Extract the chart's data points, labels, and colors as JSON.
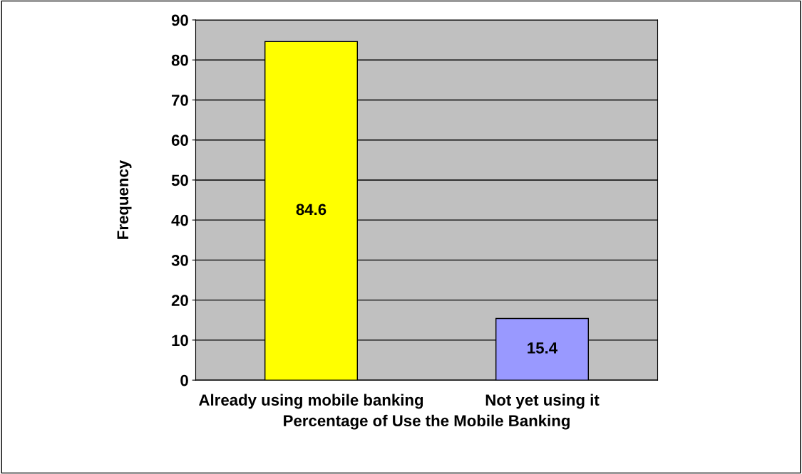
{
  "chart_data": {
    "type": "bar",
    "xlabel": "Percentage of Use the Mobile Banking",
    "ylabel": "Frequency",
    "categories": [
      "Already using mobile banking",
      "Not yet using it"
    ],
    "values": [
      84.6,
      15.4
    ],
    "colors": [
      "#ffff00",
      "#9999ff"
    ],
    "ylim": [
      0,
      90
    ],
    "yticks": [
      0,
      10,
      20,
      30,
      40,
      50,
      60,
      70,
      80,
      90
    ],
    "grid": "y",
    "data_labels": true
  }
}
